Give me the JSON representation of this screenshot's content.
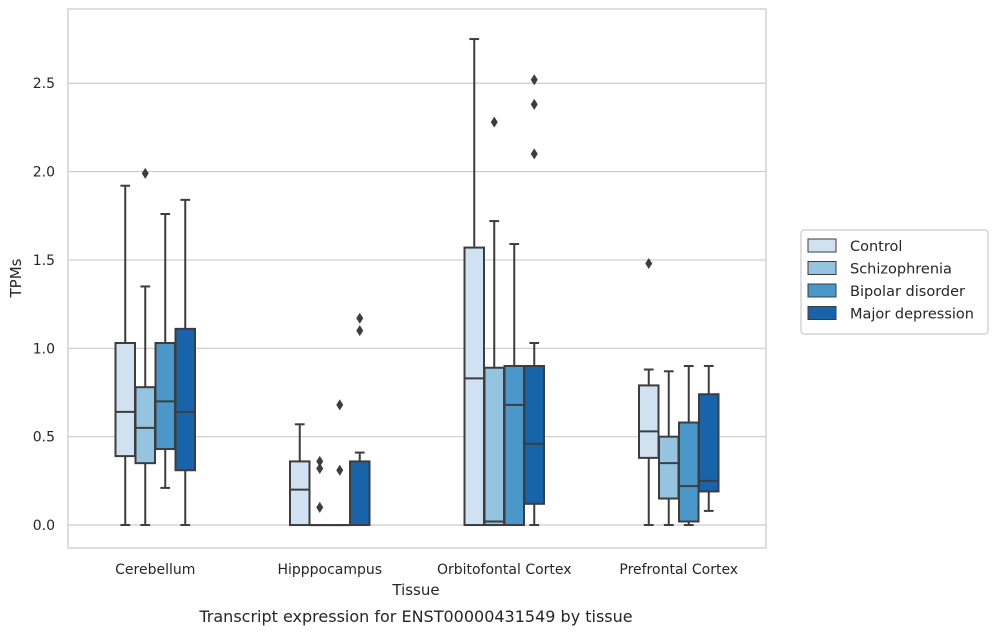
{
  "chart_data": {
    "type": "box",
    "caption": "Transcript expression for ENST00000431549 by tissue",
    "xlabel": "Tissue",
    "ylabel": "TPMs",
    "ylim": [
      -0.13,
      2.92
    ],
    "yticks": [
      0.0,
      0.5,
      1.0,
      1.5,
      2.0,
      2.5
    ],
    "ytick_labels": [
      "0.0",
      "0.5",
      "1.0",
      "1.5",
      "2.0",
      "2.5"
    ],
    "grid": "horizontal",
    "legend_position": "right",
    "categories": [
      "Cerebellum",
      "Hipppocampus",
      "Orbitofontal Cortex",
      "Prefrontal Cortex"
    ],
    "series": [
      {
        "name": "Control",
        "color": "#d0e1f2",
        "boxes": [
          {
            "whisker_low": 0.0,
            "q1": 0.39,
            "median": 0.64,
            "q3": 1.03,
            "whisker_high": 1.92,
            "outliers": []
          },
          {
            "whisker_low": 0.0,
            "q1": 0.0,
            "median": 0.2,
            "q3": 0.36,
            "whisker_high": 0.57,
            "outliers": []
          },
          {
            "whisker_low": 0.0,
            "q1": 0.0,
            "median": 0.83,
            "q3": 1.57,
            "whisker_high": 2.75,
            "outliers": []
          },
          {
            "whisker_low": 0.0,
            "q1": 0.38,
            "median": 0.53,
            "q3": 0.79,
            "whisker_high": 0.88,
            "outliers": [
              1.48
            ]
          }
        ]
      },
      {
        "name": "Schizophrenia",
        "color": "#94c4df",
        "boxes": [
          {
            "whisker_low": 0.0,
            "q1": 0.35,
            "median": 0.55,
            "q3": 0.78,
            "whisker_high": 1.35,
            "outliers": [
              1.99
            ]
          },
          {
            "whisker_low": 0.0,
            "q1": 0.0,
            "median": 0.0,
            "q3": 0.0,
            "whisker_high": 0.0,
            "outliers": [
              0.1,
              0.32,
              0.36
            ]
          },
          {
            "whisker_low": 0.0,
            "q1": 0.0,
            "median": 0.02,
            "q3": 0.89,
            "whisker_high": 1.72,
            "outliers": [
              2.28
            ]
          },
          {
            "whisker_low": 0.0,
            "q1": 0.15,
            "median": 0.35,
            "q3": 0.5,
            "whisker_high": 0.87,
            "outliers": []
          }
        ]
      },
      {
        "name": "Bipolar disorder",
        "color": "#4a98c9",
        "boxes": [
          {
            "whisker_low": 0.21,
            "q1": 0.43,
            "median": 0.7,
            "q3": 1.03,
            "whisker_high": 1.76,
            "outliers": []
          },
          {
            "whisker_low": 0.0,
            "q1": 0.0,
            "median": 0.0,
            "q3": 0.0,
            "whisker_high": 0.0,
            "outliers": [
              0.31,
              0.68
            ]
          },
          {
            "whisker_low": 0.0,
            "q1": 0.0,
            "median": 0.68,
            "q3": 0.9,
            "whisker_high": 1.59,
            "outliers": []
          },
          {
            "whisker_low": 0.0,
            "q1": 0.02,
            "median": 0.22,
            "q3": 0.58,
            "whisker_high": 0.9,
            "outliers": []
          }
        ]
      },
      {
        "name": "Major depression",
        "color": "#1764ab",
        "boxes": [
          {
            "whisker_low": 0.0,
            "q1": 0.31,
            "median": 0.64,
            "q3": 1.11,
            "whisker_high": 1.84,
            "outliers": []
          },
          {
            "whisker_low": 0.0,
            "q1": 0.0,
            "median": 0.0,
            "q3": 0.36,
            "whisker_high": 0.41,
            "outliers": [
              1.1,
              1.17
            ]
          },
          {
            "whisker_low": 0.0,
            "q1": 0.12,
            "median": 0.46,
            "q3": 0.9,
            "whisker_high": 1.03,
            "outliers": [
              2.1,
              2.38,
              2.52
            ]
          },
          {
            "whisker_low": 0.08,
            "q1": 0.19,
            "median": 0.25,
            "q3": 0.74,
            "whisker_high": 0.9,
            "outliers": []
          }
        ]
      }
    ]
  }
}
